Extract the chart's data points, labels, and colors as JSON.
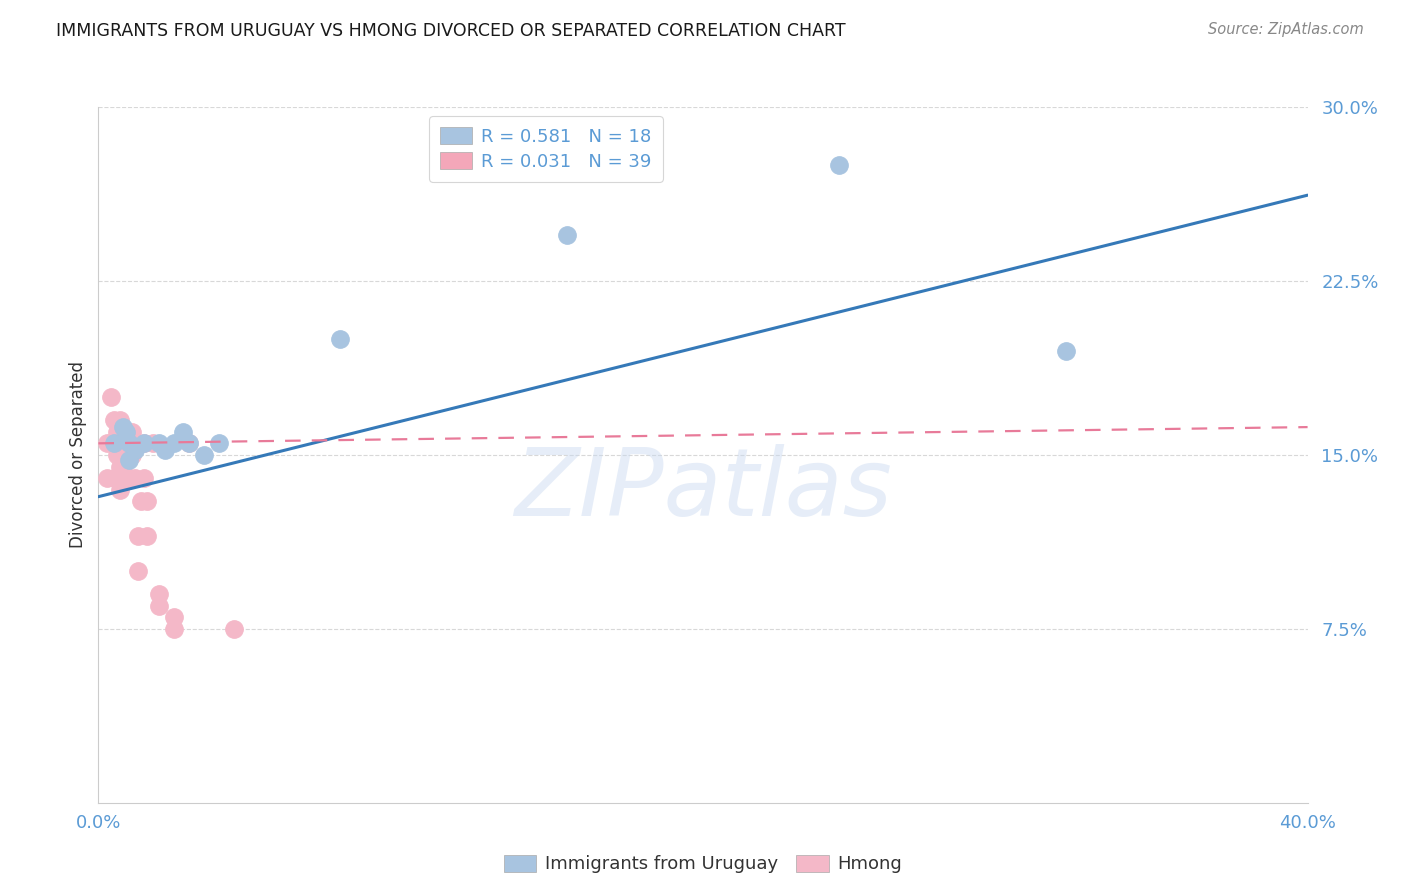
{
  "title": "IMMIGRANTS FROM URUGUAY VS HMONG DIVORCED OR SEPARATED CORRELATION CHART",
  "source": "Source: ZipAtlas.com",
  "ylabel": "Divorced or Separated",
  "xmin": 0.0,
  "xmax": 0.4,
  "ymin": 0.0,
  "ymax": 0.3,
  "yticks": [
    0.0,
    0.075,
    0.15,
    0.225,
    0.3
  ],
  "ytick_labels": [
    "",
    "7.5%",
    "15.0%",
    "22.5%",
    "30.0%"
  ],
  "xticks": [
    0.0,
    0.1,
    0.2,
    0.3,
    0.4
  ],
  "xtick_labels": [
    "0.0%",
    "",
    "",
    "",
    "40.0%"
  ],
  "legend_series": [
    {
      "label": "R = 0.581   N = 18",
      "color": "#a8c4e0"
    },
    {
      "label": "R = 0.031   N = 39",
      "color": "#f4a7b9"
    }
  ],
  "legend_labels_bottom": [
    "Immigrants from Uruguay",
    "Hmong"
  ],
  "watermark": "ZIPatlas",
  "uruguay_x": [
    0.005,
    0.008,
    0.009,
    0.01,
    0.01,
    0.012,
    0.015,
    0.02,
    0.022,
    0.025,
    0.028,
    0.03,
    0.035,
    0.04,
    0.08,
    0.155,
    0.245,
    0.32
  ],
  "uruguay_y": [
    0.155,
    0.162,
    0.16,
    0.155,
    0.148,
    0.152,
    0.155,
    0.155,
    0.152,
    0.155,
    0.16,
    0.155,
    0.15,
    0.155,
    0.2,
    0.245,
    0.275,
    0.195
  ],
  "hmong_x": [
    0.003,
    0.003,
    0.004,
    0.004,
    0.005,
    0.005,
    0.005,
    0.006,
    0.006,
    0.006,
    0.007,
    0.007,
    0.007,
    0.007,
    0.008,
    0.008,
    0.009,
    0.009,
    0.01,
    0.01,
    0.01,
    0.011,
    0.011,
    0.012,
    0.012,
    0.013,
    0.013,
    0.014,
    0.015,
    0.015,
    0.016,
    0.016,
    0.018,
    0.02,
    0.02,
    0.025,
    0.025,
    0.03,
    0.045
  ],
  "hmong_y": [
    0.155,
    0.14,
    0.175,
    0.155,
    0.165,
    0.155,
    0.14,
    0.16,
    0.15,
    0.14,
    0.165,
    0.155,
    0.145,
    0.135,
    0.155,
    0.145,
    0.16,
    0.15,
    0.155,
    0.15,
    0.14,
    0.16,
    0.15,
    0.155,
    0.14,
    0.115,
    0.1,
    0.13,
    0.155,
    0.14,
    0.13,
    0.115,
    0.155,
    0.09,
    0.085,
    0.08,
    0.075,
    0.155,
    0.075
  ],
  "uruguay_color": "#a8c4e0",
  "hmong_color": "#f4b8c8",
  "trendline_uruguay_color": "#3579b8",
  "trendline_hmong_color": "#e87a99",
  "background_color": "#ffffff",
  "grid_color": "#d8d8d8",
  "tick_color": "#5b9bd5",
  "axis_color": "#cccccc",
  "trendline_uruguay_start_y": 0.132,
  "trendline_uruguay_end_y": 0.262,
  "trendline_hmong_start_y": 0.155,
  "trendline_hmong_end_y": 0.162
}
